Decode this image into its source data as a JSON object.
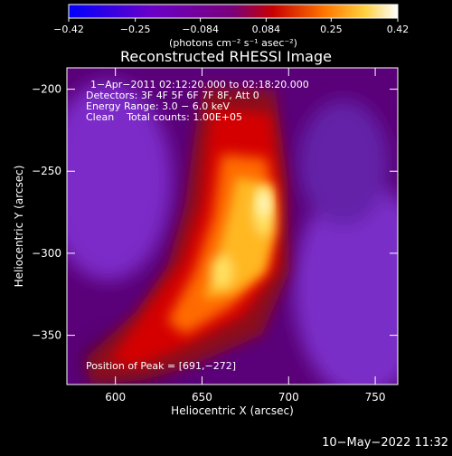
{
  "chart_data": {
    "type": "heatmap",
    "title": "Reconstructed RHESSI Image",
    "xlabel": "Heliocentric X (arcsec)",
    "ylabel": "Heliocentric Y (arcsec)",
    "xlim": [
      572,
      763
    ],
    "ylim": [
      -380,
      -187
    ],
    "xticks": [
      600,
      650,
      700,
      750
    ],
    "yticks": [
      -200,
      -250,
      -300,
      -350
    ],
    "colorbar": {
      "ticks": [
        -0.42,
        -0.25,
        -0.084,
        0.084,
        0.25,
        0.42
      ],
      "tick_labels": [
        "−0.42",
        "−0.25",
        "−0.084",
        "0.084",
        "0.25",
        "0.42"
      ],
      "unit_label": "(photons cm⁻² s⁻¹ asec⁻²)"
    },
    "annotations": [
      "1−Apr−2011 02:12:20.000 to 02:18:20.000",
      "Detectors: 3F 4F 5F 6F 7F 8F, Att 0",
      "Energy Range: 3.0 − 6.0 keV",
      "Clean    Total counts: 1.00E+05",
      "Position of Peak = [691,−272]"
    ],
    "peak": [
      691,
      -272
    ],
    "timestamp": "10−May−2022 11:32"
  }
}
